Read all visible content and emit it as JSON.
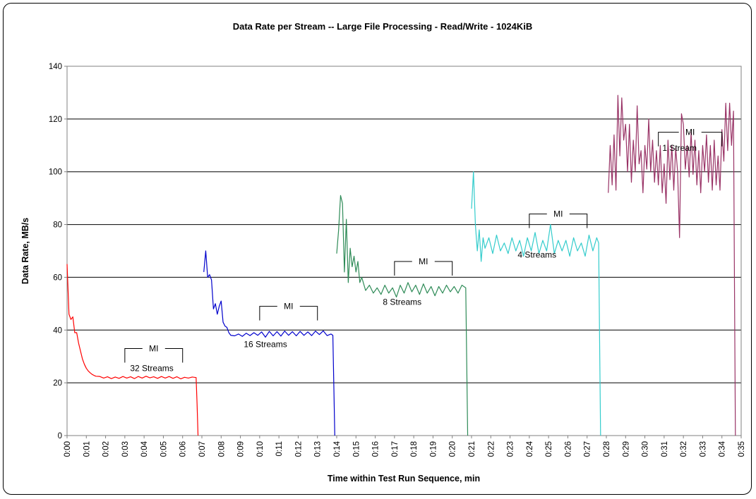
{
  "chart_data": {
    "type": "line",
    "title": "Data Rate per Stream -- Large File Processing - Read/Write - 1024KiB",
    "xlabel": "Time within Test Run Sequence, min",
    "ylabel": "Data Rate, MB/s",
    "xlim": [
      0,
      35
    ],
    "ylim": [
      0,
      140
    ],
    "y_ticks": [
      0,
      20,
      40,
      60,
      80,
      100,
      120,
      140
    ],
    "x_tick_labels": [
      "0:00",
      "0:01",
      "0:02",
      "0:03",
      "0:04",
      "0:05",
      "0:06",
      "0:07",
      "0:08",
      "0:09",
      "0:10",
      "0:11",
      "0:12",
      "0:13",
      "0:14",
      "0:15",
      "0:16",
      "0:17",
      "0:18",
      "0:19",
      "0:20",
      "0:21",
      "0:22",
      "0:23",
      "0:24",
      "0:25",
      "0:26",
      "0:27",
      "0:28",
      "0:29",
      "0:30",
      "0:31",
      "0:32",
      "0:33",
      "0:34",
      "0:35"
    ],
    "grid": "horizontal",
    "series": [
      {
        "name": "32 Streams",
        "color": "#ff0000",
        "label_at": [
          4.4,
          24.5
        ],
        "mi_bracket": {
          "x1": 3.0,
          "x2": 6.0,
          "y": 33,
          "label": "MI"
        },
        "points": [
          [
            0,
            65
          ],
          [
            0.1,
            46
          ],
          [
            0.2,
            44
          ],
          [
            0.3,
            45
          ],
          [
            0.4,
            39
          ],
          [
            0.5,
            39
          ],
          [
            0.6,
            35
          ],
          [
            0.7,
            32
          ],
          [
            0.8,
            29
          ],
          [
            0.9,
            27
          ],
          [
            1.0,
            25.5
          ],
          [
            1.1,
            24.5
          ],
          [
            1.2,
            23.8
          ],
          [
            1.3,
            23.2
          ],
          [
            1.4,
            22.8
          ],
          [
            1.5,
            22.5
          ],
          [
            1.7,
            22.4
          ],
          [
            1.9,
            21.8
          ],
          [
            2.1,
            22.3
          ],
          [
            2.3,
            21.6
          ],
          [
            2.5,
            22.2
          ],
          [
            2.7,
            21.7
          ],
          [
            2.9,
            22.4
          ],
          [
            3.1,
            21.8
          ],
          [
            3.3,
            22.3
          ],
          [
            3.5,
            21.6
          ],
          [
            3.7,
            22.4
          ],
          [
            3.9,
            21.8
          ],
          [
            4.1,
            22.5
          ],
          [
            4.3,
            21.9
          ],
          [
            4.5,
            22.3
          ],
          [
            4.7,
            21.7
          ],
          [
            4.9,
            22.4
          ],
          [
            5.1,
            21.8
          ],
          [
            5.3,
            22.4
          ],
          [
            5.5,
            21.7
          ],
          [
            5.7,
            22.3
          ],
          [
            5.9,
            21.5
          ],
          [
            6.1,
            22.1
          ],
          [
            6.3,
            21.8
          ],
          [
            6.5,
            22.2
          ],
          [
            6.7,
            22.0
          ],
          [
            6.75,
            12
          ],
          [
            6.8,
            0
          ]
        ]
      },
      {
        "name": "16 Streams",
        "color": "#0000cc",
        "label_at": [
          10.3,
          33.5
        ],
        "mi_bracket": {
          "x1": 10.0,
          "x2": 13.0,
          "y": 49,
          "label": "MI"
        },
        "points": [
          [
            7.1,
            62
          ],
          [
            7.2,
            70
          ],
          [
            7.3,
            60
          ],
          [
            7.4,
            61
          ],
          [
            7.5,
            59
          ],
          [
            7.6,
            48
          ],
          [
            7.7,
            50
          ],
          [
            7.8,
            46
          ],
          [
            7.9,
            49
          ],
          [
            8.0,
            51
          ],
          [
            8.1,
            43
          ],
          [
            8.2,
            41.5
          ],
          [
            8.3,
            41
          ],
          [
            8.4,
            39
          ],
          [
            8.5,
            38
          ],
          [
            8.7,
            37.8
          ],
          [
            8.9,
            38.5
          ],
          [
            9.1,
            37.6
          ],
          [
            9.3,
            38.8
          ],
          [
            9.5,
            37.9
          ],
          [
            9.7,
            39
          ],
          [
            9.9,
            38
          ],
          [
            10.1,
            39.3
          ],
          [
            10.3,
            37.3
          ],
          [
            10.5,
            39.5
          ],
          [
            10.7,
            37.8
          ],
          [
            10.9,
            39.4
          ],
          [
            11.1,
            37.7
          ],
          [
            11.3,
            39.6
          ],
          [
            11.5,
            38
          ],
          [
            11.7,
            39.4
          ],
          [
            11.9,
            37.8
          ],
          [
            12.1,
            39.5
          ],
          [
            12.3,
            38
          ],
          [
            12.5,
            39.3
          ],
          [
            12.7,
            37.9
          ],
          [
            12.9,
            39.6
          ],
          [
            13.1,
            38.3
          ],
          [
            13.3,
            39.7
          ],
          [
            13.5,
            37.9
          ],
          [
            13.7,
            38.5
          ],
          [
            13.8,
            38
          ],
          [
            13.85,
            19
          ],
          [
            13.9,
            0
          ]
        ]
      },
      {
        "name": "8 Streams",
        "color": "#2e8b57",
        "label_at": [
          17.4,
          49.5
        ],
        "mi_bracket": {
          "x1": 17.0,
          "x2": 20.0,
          "y": 66,
          "label": "MI"
        },
        "points": [
          [
            14.0,
            69
          ],
          [
            14.1,
            78
          ],
          [
            14.2,
            91
          ],
          [
            14.3,
            88
          ],
          [
            14.4,
            62
          ],
          [
            14.5,
            82
          ],
          [
            14.6,
            58
          ],
          [
            14.7,
            71
          ],
          [
            14.8,
            64
          ],
          [
            14.9,
            68
          ],
          [
            15.0,
            62
          ],
          [
            15.1,
            66
          ],
          [
            15.2,
            58
          ],
          [
            15.3,
            60
          ],
          [
            15.5,
            55
          ],
          [
            15.7,
            57
          ],
          [
            15.9,
            54
          ],
          [
            16.1,
            56
          ],
          [
            16.3,
            53.5
          ],
          [
            16.5,
            57
          ],
          [
            16.7,
            54
          ],
          [
            16.9,
            56
          ],
          [
            17.1,
            52.5
          ],
          [
            17.3,
            57
          ],
          [
            17.5,
            54
          ],
          [
            17.7,
            58
          ],
          [
            17.9,
            54.5
          ],
          [
            18.1,
            57
          ],
          [
            18.3,
            53.5
          ],
          [
            18.5,
            57.5
          ],
          [
            18.7,
            54
          ],
          [
            18.9,
            56.5
          ],
          [
            19.1,
            53
          ],
          [
            19.3,
            56.5
          ],
          [
            19.5,
            54
          ],
          [
            19.7,
            57
          ],
          [
            19.9,
            54.5
          ],
          [
            20.1,
            56.5
          ],
          [
            20.3,
            54
          ],
          [
            20.5,
            57
          ],
          [
            20.7,
            56
          ],
          [
            20.75,
            28
          ],
          [
            20.8,
            0
          ]
        ]
      },
      {
        "name": "4 Streams",
        "color": "#33cccc",
        "label_at": [
          24.4,
          67.5
        ],
        "mi_bracket": {
          "x1": 24.0,
          "x2": 27.0,
          "y": 84,
          "label": "MI"
        },
        "points": [
          [
            21.0,
            86
          ],
          [
            21.1,
            100
          ],
          [
            21.2,
            80
          ],
          [
            21.3,
            70
          ],
          [
            21.4,
            78
          ],
          [
            21.5,
            66
          ],
          [
            21.6,
            75
          ],
          [
            21.7,
            71
          ],
          [
            21.9,
            75
          ],
          [
            22.1,
            69
          ],
          [
            22.3,
            76
          ],
          [
            22.5,
            70
          ],
          [
            22.7,
            73
          ],
          [
            22.9,
            69
          ],
          [
            23.1,
            75
          ],
          [
            23.3,
            70
          ],
          [
            23.5,
            74
          ],
          [
            23.7,
            68
          ],
          [
            23.9,
            75
          ],
          [
            24.1,
            70
          ],
          [
            24.3,
            77
          ],
          [
            24.5,
            69
          ],
          [
            24.7,
            74
          ],
          [
            24.9,
            70
          ],
          [
            25.1,
            80
          ],
          [
            25.3,
            69
          ],
          [
            25.5,
            74
          ],
          [
            25.7,
            70
          ],
          [
            25.9,
            74
          ],
          [
            26.1,
            68
          ],
          [
            26.3,
            75
          ],
          [
            26.5,
            70
          ],
          [
            26.7,
            73
          ],
          [
            26.9,
            68
          ],
          [
            27.1,
            76
          ],
          [
            27.3,
            70
          ],
          [
            27.5,
            75
          ],
          [
            27.6,
            73
          ],
          [
            27.65,
            36
          ],
          [
            27.7,
            0
          ]
        ]
      },
      {
        "name": "1 Stream",
        "color": "#993366",
        "label_at": [
          31.8,
          108
        ],
        "mi_bracket": {
          "x1": 30.7,
          "x2": 34.0,
          "y": 115,
          "label": "MI"
        },
        "points": [
          [
            28.1,
            92
          ],
          [
            28.2,
            110
          ],
          [
            28.3,
            95
          ],
          [
            28.4,
            114
          ],
          [
            28.5,
            93
          ],
          [
            28.6,
            129
          ],
          [
            28.7,
            106
          ],
          [
            28.8,
            128
          ],
          [
            28.9,
            112
          ],
          [
            29.0,
            118
          ],
          [
            29.1,
            100
          ],
          [
            29.2,
            118
          ],
          [
            29.3,
            96
          ],
          [
            29.4,
            112
          ],
          [
            29.5,
            100
          ],
          [
            29.6,
            125
          ],
          [
            29.7,
            103
          ],
          [
            29.8,
            108
          ],
          [
            29.9,
            92
          ],
          [
            30.0,
            110
          ],
          [
            30.1,
            101
          ],
          [
            30.2,
            120
          ],
          [
            30.3,
            100
          ],
          [
            30.4,
            112
          ],
          [
            30.5,
            96
          ],
          [
            30.6,
            108
          ],
          [
            30.7,
            95
          ],
          [
            30.8,
            110
          ],
          [
            30.9,
            92
          ],
          [
            31.0,
            103
          ],
          [
            31.1,
            88
          ],
          [
            31.2,
            112
          ],
          [
            31.3,
            97
          ],
          [
            31.4,
            110
          ],
          [
            31.5,
            93
          ],
          [
            31.6,
            109
          ],
          [
            31.7,
            100
          ],
          [
            31.8,
            75
          ],
          [
            31.9,
            122
          ],
          [
            32.0,
            118
          ],
          [
            32.1,
            101
          ],
          [
            32.2,
            110
          ],
          [
            32.3,
            98
          ],
          [
            32.4,
            115
          ],
          [
            32.5,
            99
          ],
          [
            32.6,
            112
          ],
          [
            32.7,
            95
          ],
          [
            32.8,
            108
          ],
          [
            32.9,
            92
          ],
          [
            33.0,
            110
          ],
          [
            33.1,
            100
          ],
          [
            33.2,
            114
          ],
          [
            33.3,
            96
          ],
          [
            33.4,
            110
          ],
          [
            33.5,
            93
          ],
          [
            33.6,
            112
          ],
          [
            33.7,
            95
          ],
          [
            33.8,
            106
          ],
          [
            33.9,
            93
          ],
          [
            34.0,
            116
          ],
          [
            34.1,
            104
          ],
          [
            34.2,
            126
          ],
          [
            34.3,
            108
          ],
          [
            34.4,
            126
          ],
          [
            34.5,
            110
          ],
          [
            34.6,
            123
          ],
          [
            34.65,
            60
          ],
          [
            34.7,
            0
          ]
        ]
      }
    ]
  }
}
